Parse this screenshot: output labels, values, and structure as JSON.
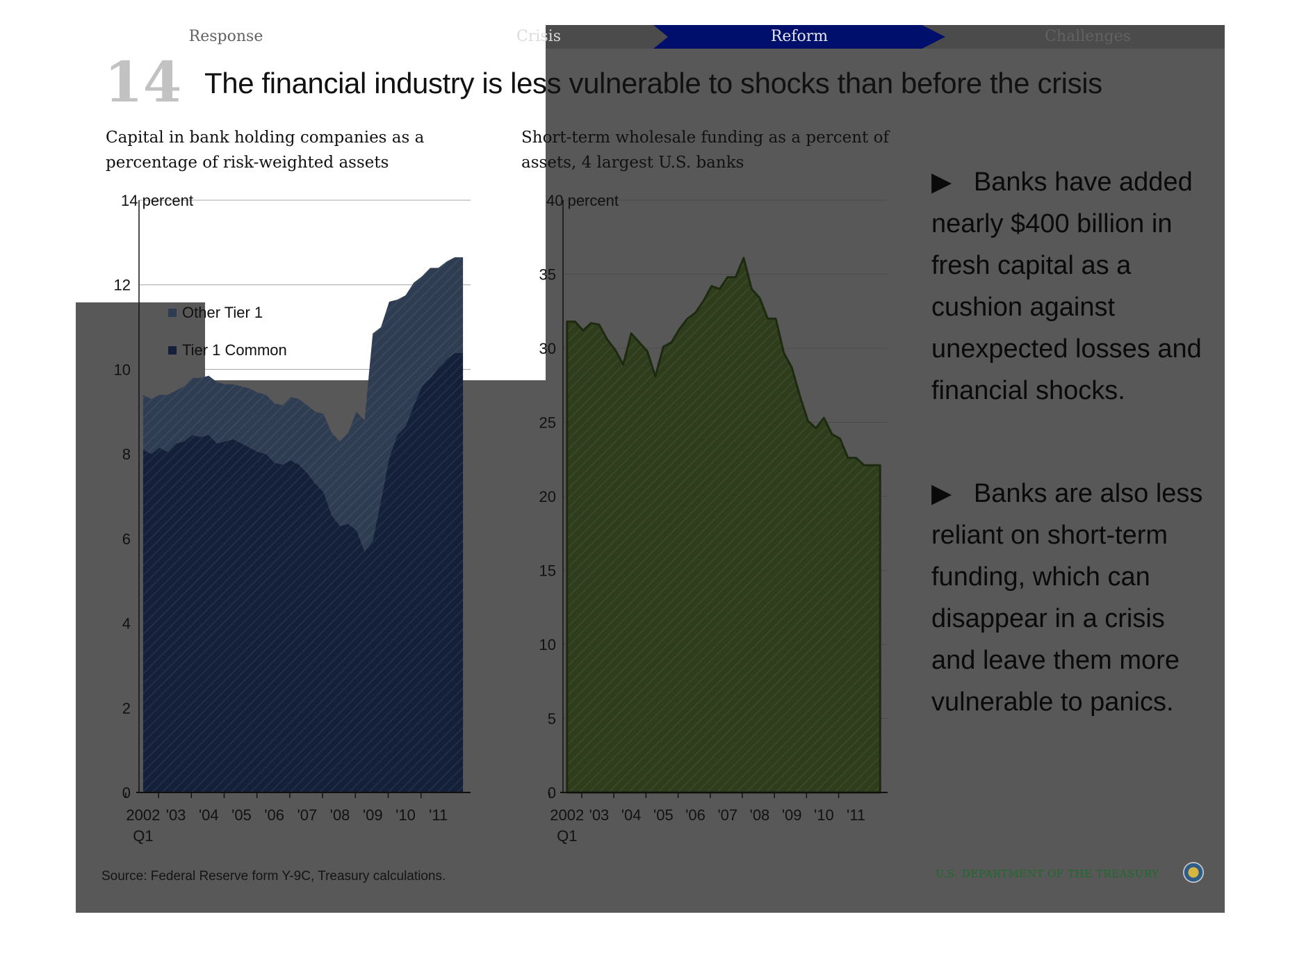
{
  "nav": {
    "tabs": [
      {
        "label": "Response"
      },
      {
        "label": "Crisis"
      },
      {
        "label": "Reform"
      },
      {
        "label": "Challenges"
      }
    ]
  },
  "slide": {
    "number": "14",
    "title": "The financial industry is less vulnerable to shocks than before the crisis"
  },
  "bullets": [
    {
      "text": "Banks have added nearly  $400 billion in fresh capital as a cushion against unexpected losses and financial shocks."
    },
    {
      "text": "Banks are also less reliant on short-term funding, which can disappear in a crisis and leave them more vulnerable to panics."
    }
  ],
  "footer": {
    "source": "Source: Federal Reserve form Y-9C, Treasury calculations.",
    "org": "U.S. DEPARTMENT OF THE TREASURY"
  },
  "colors": {
    "tier1_common": "#14203a",
    "other_tier1": "#2f3d52",
    "wholesale_fill": "#2e3d1c",
    "wholesale_line": "#1d2a10",
    "slide_gray": "#585858",
    "nav_active": "#000f6b"
  },
  "chart_data": [
    {
      "type": "area",
      "stacked": true,
      "title": "Capital in bank holding companies as a percentage of risk-weighted assets",
      "ylabel": "14 percent",
      "ylim": [
        0,
        14
      ],
      "yticks": [
        "0",
        "2",
        "4",
        "6",
        "8",
        "10",
        "12",
        "14 percent"
      ],
      "x_tick_labels": [
        "2002",
        "'03",
        "'04",
        "'05",
        "'06",
        "'07",
        "'08",
        "'09",
        "'10",
        "'11"
      ],
      "x_sub_label": "Q1",
      "legend": [
        "Other Tier 1",
        "Tier 1 Common"
      ],
      "grid": true,
      "x": [
        2002.0,
        2002.25,
        2002.5,
        2002.75,
        2003.0,
        2003.25,
        2003.5,
        2003.75,
        2004.0,
        2004.25,
        2004.5,
        2004.75,
        2005.0,
        2005.25,
        2005.5,
        2005.75,
        2006.0,
        2006.25,
        2006.5,
        2006.75,
        2007.0,
        2007.25,
        2007.5,
        2007.75,
        2008.0,
        2008.25,
        2008.5,
        2008.75,
        2009.0,
        2009.25,
        2009.5,
        2009.75,
        2010.0,
        2010.25,
        2010.5,
        2010.75,
        2011.0,
        2011.25,
        2011.5,
        2011.75
      ],
      "series": [
        {
          "name": "Tier 1 Common",
          "values": [
            8.1,
            8.0,
            8.15,
            8.05,
            8.25,
            8.3,
            8.45,
            8.4,
            8.45,
            8.25,
            8.3,
            8.35,
            8.25,
            8.15,
            8.05,
            8.0,
            7.8,
            7.75,
            7.85,
            7.75,
            7.55,
            7.3,
            7.1,
            6.55,
            6.3,
            6.35,
            6.2,
            5.7,
            5.95,
            6.9,
            7.9,
            8.45,
            8.65,
            9.15,
            9.6,
            9.8,
            10.05,
            10.25,
            10.4,
            10.4
          ]
        },
        {
          "name": "Other Tier 1",
          "values": [
            1.3,
            1.3,
            1.25,
            1.35,
            1.25,
            1.3,
            1.35,
            1.4,
            1.4,
            1.45,
            1.35,
            1.3,
            1.35,
            1.4,
            1.4,
            1.4,
            1.4,
            1.4,
            1.5,
            1.55,
            1.6,
            1.7,
            1.85,
            1.95,
            2.0,
            2.15,
            2.8,
            3.1,
            4.9,
            4.1,
            3.7,
            3.2,
            3.1,
            2.9,
            2.6,
            2.6,
            2.35,
            2.3,
            2.25,
            2.25
          ]
        }
      ]
    },
    {
      "type": "area",
      "title": "Short-term wholesale funding as a percent of assets, 4 largest U.S. banks",
      "ylabel": "40 percent",
      "ylim": [
        0,
        40
      ],
      "yticks": [
        "0",
        "5",
        "10",
        "15",
        "20",
        "25",
        "30",
        "35",
        "40 percent"
      ],
      "x_tick_labels": [
        "2002",
        "'03",
        "'04",
        "'05",
        "'06",
        "'07",
        "'08",
        "'09",
        "'10",
        "'11"
      ],
      "x_sub_label": "Q1",
      "grid": true,
      "x": [
        2002.0,
        2002.25,
        2002.5,
        2002.75,
        2003.0,
        2003.25,
        2003.5,
        2003.75,
        2004.0,
        2004.25,
        2004.5,
        2004.75,
        2005.0,
        2005.25,
        2005.5,
        2005.75,
        2006.0,
        2006.25,
        2006.5,
        2006.75,
        2007.0,
        2007.25,
        2007.5,
        2007.75,
        2008.0,
        2008.25,
        2008.5,
        2008.75,
        2009.0,
        2009.25,
        2009.5,
        2009.75,
        2010.0,
        2010.25,
        2010.5,
        2010.75,
        2011.0,
        2011.25,
        2011.5,
        2011.75
      ],
      "series": [
        {
          "name": "",
          "values": [
            31.8,
            31.8,
            31.2,
            31.7,
            31.6,
            30.6,
            29.9,
            28.9,
            31.0,
            30.4,
            29.8,
            28.1,
            30.1,
            30.4,
            31.3,
            32.0,
            32.4,
            33.2,
            34.2,
            34.0,
            34.8,
            34.8,
            36.1,
            34.0,
            33.4,
            32.0,
            32.0,
            29.7,
            28.7,
            26.8,
            25.1,
            24.6,
            25.3,
            24.2,
            23.9,
            22.6,
            22.6,
            22.1,
            22.1,
            22.1
          ]
        }
      ]
    }
  ]
}
